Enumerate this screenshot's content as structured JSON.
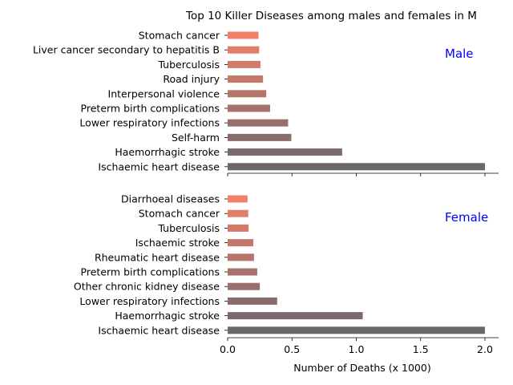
{
  "chart_data": {
    "type": "bar",
    "orientation": "horizontal",
    "title": "Top 10 Killer Diseases among males and females in M",
    "xlabel": "Number of Deaths (x 1000)",
    "xlim": [
      0,
      2.1
    ],
    "xticks": [
      "0.0",
      "0.5",
      "1.0",
      "1.5",
      "2.0"
    ],
    "bar_color_top": "#ef8169",
    "bar_color_bottom": "#6c666d",
    "panel_label_color": "#0000ff",
    "panels": [
      {
        "label": "Male",
        "categories": [
          "Stomach cancer",
          "Liver cancer secondary to hepatitis B",
          "Tuberculosis",
          "Road injury",
          "Interpersonal violence",
          "Preterm birth complications",
          "Lower respiratory infections",
          "Self-harm",
          "Haemorrhagic stroke",
          "Ischaemic heart disease"
        ],
        "values": [
          0.24,
          0.245,
          0.255,
          0.275,
          0.3,
          0.33,
          0.47,
          0.495,
          0.89,
          2.0
        ]
      },
      {
        "label": "Female",
        "categories": [
          "Diarrhoeal diseases",
          "Stomach cancer",
          "Tuberculosis",
          "Ischaemic stroke",
          "Rheumatic heart disease",
          "Preterm birth complications",
          "Other chronic kidney disease",
          "Lower respiratory infections",
          "Haemorrhagic stroke",
          "Ischaemic heart disease"
        ],
        "values": [
          0.155,
          0.16,
          0.163,
          0.2,
          0.205,
          0.23,
          0.25,
          0.385,
          1.05,
          2.0
        ]
      }
    ]
  }
}
